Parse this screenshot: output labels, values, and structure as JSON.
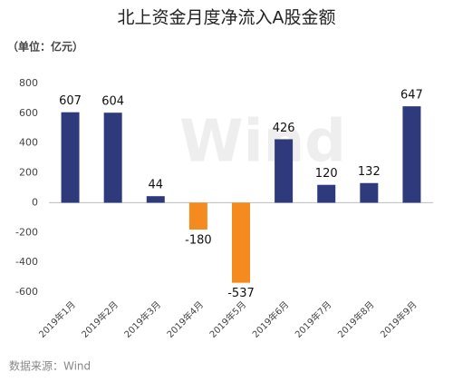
{
  "chart_data": {
    "type": "bar",
    "title": "北上资金月度净流入A股金额",
    "subtitle": "（单位：亿元）",
    "source": "数据来源：Wind",
    "watermark": "Wind",
    "categories": [
      "2019年1月",
      "2019年2月",
      "2019年3月",
      "2019年4月",
      "2019年5月",
      "2019年6月",
      "2019年7月",
      "2019年8月",
      "2019年9月"
    ],
    "values": [
      607,
      604,
      44,
      -180,
      -537,
      426,
      120,
      132,
      647
    ],
    "colors": [
      "#2e3a7c",
      "#2e3a7c",
      "#2e3a7c",
      "#f58a1f",
      "#f58a1f",
      "#2e3a7c",
      "#2e3a7c",
      "#2e3a7c",
      "#2e3a7c"
    ],
    "ylim": [
      -600,
      800
    ],
    "yticks": [
      -600,
      -400,
      -200,
      0,
      200,
      400,
      600,
      800
    ],
    "grid": false
  }
}
